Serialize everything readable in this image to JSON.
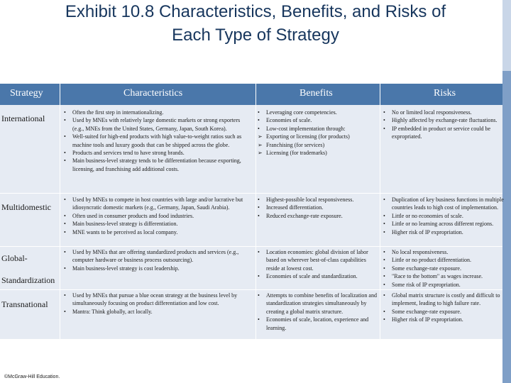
{
  "title": {
    "line1": "Exhibit 10.8 Characteristics, Benefits, and Risks of",
    "line2": "Each Type of Strategy"
  },
  "table": {
    "headers": {
      "strategy": "Strategy",
      "characteristics": "Characteristics",
      "benefits": "Benefits",
      "risks": "Risks"
    },
    "rows": [
      {
        "strategy": "International",
        "characteristics": [
          "Often the first step in internationalizing.",
          "Used by MNEs with relatively large domestic markets or strong exporters (e.g., MNEs from the United States, Germany, Japan, South Korea).",
          "Well-suited for high-end products with high value-to-weight ratios such as machine tools and luxury goods that can be shipped across the globe.",
          "Products and services tend to have strong brands.",
          "Main business-level strategy tends to be differentiation because exporting, licensing, and franchising add additional costs."
        ],
        "benefits": [
          {
            "marker": "•",
            "text": "Leveraging core competencies."
          },
          {
            "marker": "•",
            "text": "Economies of scale."
          },
          {
            "marker": "•",
            "text": "Low-cost implementation through:"
          },
          {
            "marker": "➢",
            "text": "Exporting or licensing (for products)"
          },
          {
            "marker": "➢",
            "text": "Franchising (for services)"
          },
          {
            "marker": "➢",
            "text": "Licensing (for trademarks)"
          }
        ],
        "risks": [
          "No or limited local responsiveness.",
          "Highly affected by exchange-rate fluctuations.",
          "IP embedded in product or service could be expropriated."
        ]
      },
      {
        "strategy": "Multidomestic",
        "characteristics": [
          "Used by MNEs to compete in host countries with large and/or lucrative but idiosyncratic domestic markets (e.g., Germany, Japan, Saudi Arabia).",
          "Often used in consumer products and food industries.",
          "Main business-level strategy is differentiation.",
          "MNE wants to be perceived as local company."
        ],
        "benefits": [
          {
            "marker": "•",
            "text": "Highest-possible local responsiveness."
          },
          {
            "marker": "•",
            "text": "Increased differentiation."
          },
          {
            "marker": "•",
            "text": "Reduced exchange-rate exposure."
          }
        ],
        "risks": [
          "Duplication of key business functions in multiple countries leads to high cost of implementation.",
          "Little or no economies of scale.",
          "Little or no learning across different regions.",
          "Higher risk of IP expropriation."
        ]
      },
      {
        "strategy_line1": "Global-",
        "strategy_line2": "Standardization",
        "characteristics": [
          "Used by MNEs that are offering standardized products and services (e.g., computer hardware or business process outsourcing).",
          "Main business-level strategy is cost leadership."
        ],
        "benefits": [
          {
            "marker": "•",
            "text": "Location economies: global division of labor based on wherever best-of-class capabilities reside at lowest cost."
          },
          {
            "marker": "•",
            "text": "Economies of scale and standardization."
          }
        ],
        "risks": [
          "No local responsiveness.",
          "Little or no product differentiation.",
          "Some exchange-rate exposure.",
          "\"Race to the bottom\" as wages increase.",
          "Some risk of IP expropriation."
        ]
      },
      {
        "strategy": "Transnational",
        "characteristics": [
          "Used by MNEs that pursue a blue ocean strategy at the business level by simultaneously focusing on product differentiation and low cost.",
          "Mantra: Think globally, act locally."
        ],
        "benefits": [
          {
            "marker": "•",
            "text": "Attempts to combine benefits of localization and standardization strategies simultaneously by creating a global matrix structure."
          },
          {
            "marker": "•",
            "text": "Economies of scale, location, experience and learning."
          }
        ],
        "risks": [
          "Global matrix structure is costly and difficult to implement, leading to high failure rate.",
          "Some exchange-rate exposure.",
          "Higher risk of IP expropriation."
        ]
      }
    ]
  },
  "footer": {
    "copyright": "©McGraw-Hill Education."
  },
  "colors": {
    "title": "#17365d",
    "header_bg": "#4a77aa",
    "body_bg": "#e6ebf3",
    "accent_strip": "#7f9fc7"
  }
}
